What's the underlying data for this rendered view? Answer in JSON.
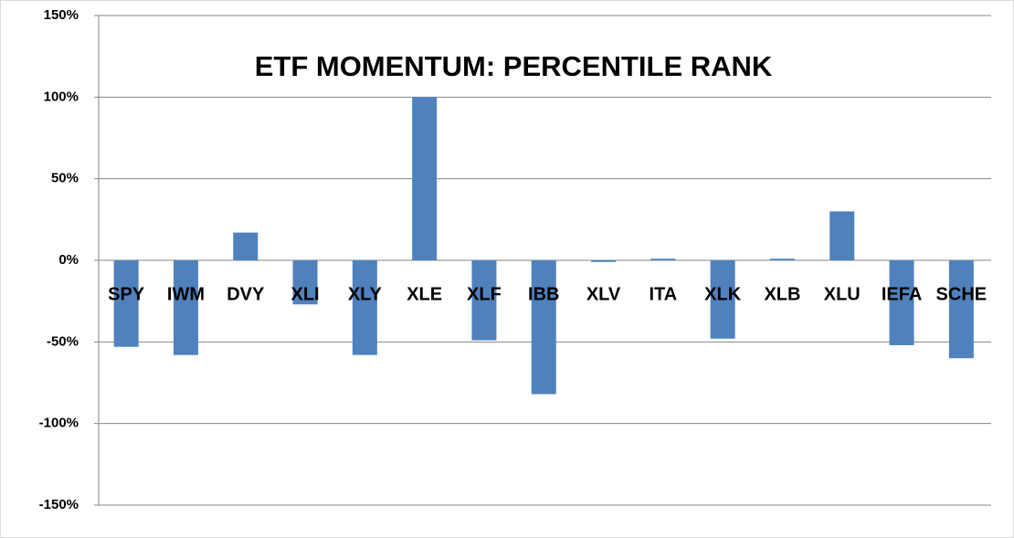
{
  "chart_data": {
    "type": "bar",
    "title": "ETF MOMENTUM: PERCENTILE RANK",
    "categories": [
      "SPY",
      "IWM",
      "DVY",
      "XLI",
      "XLY",
      "XLE",
      "XLF",
      "IBB",
      "XLV",
      "ITA",
      "XLK",
      "XLB",
      "XLU",
      "IEFA",
      "SCHE"
    ],
    "values": [
      -53,
      -58,
      17,
      -27,
      -58,
      100,
      -49,
      -82,
      -1,
      1,
      -48,
      1,
      30,
      -52,
      -60
    ],
    "color": "#4f81bd",
    "ylim": [
      -150,
      150
    ],
    "yticks": [
      {
        "value": -150,
        "label": "-150%"
      },
      {
        "value": -100,
        "label": "-100%"
      },
      {
        "value": -50,
        "label": "-50%"
      },
      {
        "value": 0,
        "label": "0%"
      },
      {
        "value": 50,
        "label": "50%"
      },
      {
        "value": 100,
        "label": "100%"
      },
      {
        "value": 150,
        "label": "150%"
      }
    ],
    "grid": true
  }
}
